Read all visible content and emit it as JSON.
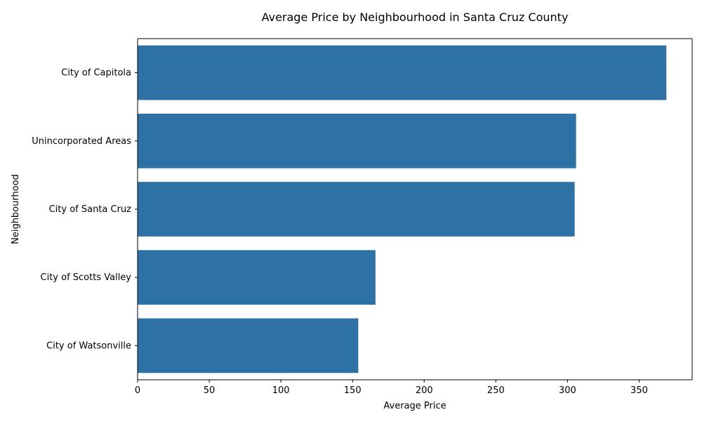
{
  "chart_data": {
    "type": "bar",
    "orientation": "horizontal",
    "title": "Average Price by Neighbourhood in Santa Cruz County",
    "xlabel": "Average Price",
    "ylabel": "Neighbourhood",
    "categories": [
      "City of Capitola",
      "Unincorporated Areas",
      "City of Santa Cruz",
      "City of Scotts Valley",
      "City of Watsonville"
    ],
    "values": [
      369,
      306,
      305,
      166,
      154
    ],
    "xlim": [
      0,
      387
    ],
    "xticks": [
      0,
      50,
      100,
      150,
      200,
      250,
      300,
      350
    ],
    "grid": false,
    "bar_color": "#2e72a5"
  }
}
